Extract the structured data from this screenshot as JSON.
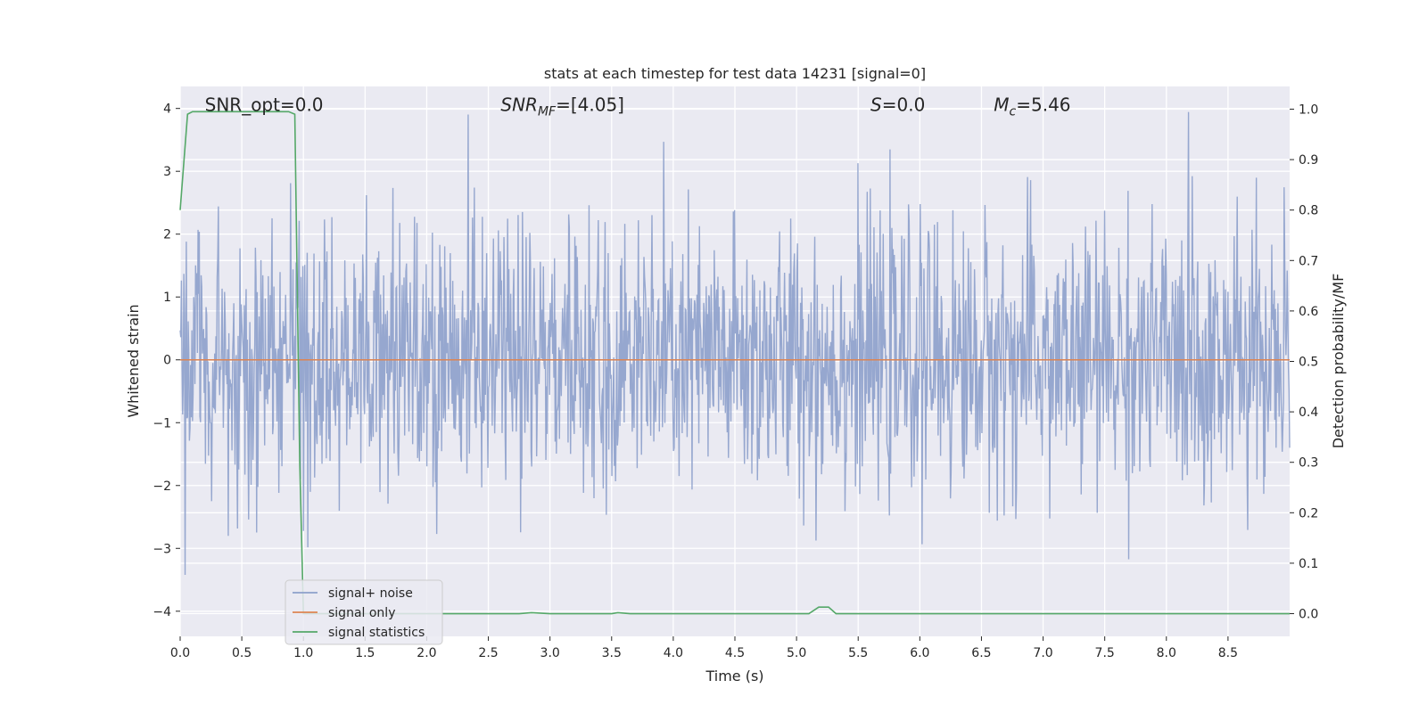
{
  "chart_data": {
    "type": "line",
    "title": "stats at each timestep for test data 14231 [signal=0]",
    "xlabel": "Time (s)",
    "ylabel": "Whitened strain",
    "ylabel_right": "Detection probability/MF",
    "xlim": [
      0,
      9.0
    ],
    "ylim": [
      -4.4,
      4.35
    ],
    "ylim_right": [
      -0.045,
      1.045
    ],
    "x_ticks": [
      0.0,
      0.5,
      1.0,
      1.5,
      2.0,
      2.5,
      3.0,
      3.5,
      4.0,
      4.5,
      5.0,
      5.5,
      6.0,
      6.5,
      7.0,
      7.5,
      8.0,
      8.5
    ],
    "x_tick_labels": [
      "0.0",
      "0.5",
      "1.0",
      "1.5",
      "2.0",
      "2.5",
      "3.0",
      "3.5",
      "4.0",
      "4.5",
      "5.0",
      "5.5",
      "6.0",
      "6.5",
      "7.0",
      "7.5",
      "8.0",
      "8.5"
    ],
    "y_ticks": [
      -4,
      -3,
      -2,
      -1,
      0,
      1,
      2,
      3,
      4
    ],
    "y_tick_labels": [
      "−4",
      "−3",
      "−2",
      "−1",
      "0",
      "1",
      "2",
      "3",
      "4"
    ],
    "y_ticks_right": [
      0.0,
      0.1,
      0.2,
      0.3,
      0.4,
      0.5,
      0.6,
      0.7,
      0.8,
      0.9,
      1.0
    ],
    "y_tick_labels_right": [
      "0.0",
      "0.1",
      "0.2",
      "0.3",
      "0.4",
      "0.5",
      "0.6",
      "0.7",
      "0.8",
      "0.9",
      "1.0"
    ],
    "grid": true,
    "legend_position": "lower-left",
    "annotations": [
      {
        "text": "SNR_opt=0.0",
        "x": 0.2
      },
      {
        "text": "SNR_MF=[4.05]",
        "x": 2.6
      },
      {
        "text": "S=0.0",
        "x": 5.6
      },
      {
        "text": "M_c=5.46",
        "x": 6.6
      }
    ],
    "series": [
      {
        "name": "signal+ noise",
        "color": "#8da0cb",
        "axis": "left",
        "kind": "noise",
        "amplitude_range": [
          -4,
          4
        ]
      },
      {
        "name": "signal only",
        "color": "#dd8452",
        "axis": "left",
        "x": [
          0,
          9.0
        ],
        "y": [
          0,
          0
        ]
      },
      {
        "name": "signal statistics",
        "color": "#55a868",
        "axis": "right",
        "x": [
          0.0,
          0.06,
          0.1,
          0.3,
          0.6,
          0.88,
          0.93,
          0.97,
          1.0,
          1.05,
          1.5,
          2.0,
          2.5,
          2.75,
          2.85,
          3.0,
          3.5,
          3.55,
          3.65,
          4.0,
          4.5,
          5.0,
          5.1,
          5.18,
          5.26,
          5.32,
          5.5,
          6.0,
          6.4,
          7.0,
          7.5,
          8.0,
          8.5,
          9.0
        ],
        "y": [
          0.8,
          0.99,
          0.995,
          0.995,
          0.995,
          0.995,
          0.99,
          0.3,
          0.0,
          0.0,
          0.0,
          0.0,
          0.0,
          0.0,
          0.002,
          0.0,
          0.0,
          0.002,
          0.0,
          0.0,
          0.0,
          0.0,
          0.0,
          0.013,
          0.013,
          0.0,
          0.0,
          0.0,
          0.0,
          0.0,
          0.0,
          0.0,
          0.0,
          0.0
        ]
      }
    ]
  }
}
